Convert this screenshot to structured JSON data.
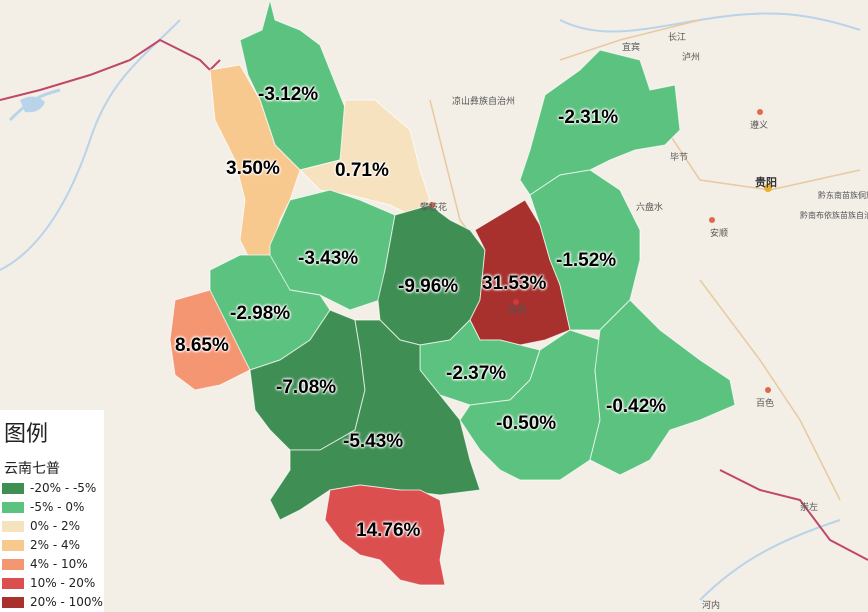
{
  "colors": {
    "bin1": "#3f8f55",
    "bin2": "#5cc27f",
    "bin3": "#f7e2bf",
    "bin4": "#f7c98f",
    "bin5": "#f59673",
    "bin6": "#dc4f4f",
    "bin7": "#a8302d",
    "boundary": "#c0466a",
    "background": "#f3efe6"
  },
  "regions": [
    {
      "id": "nujiang",
      "label": "-3.12%",
      "value": -3.12,
      "bin": "bin2"
    },
    {
      "id": "diqing",
      "label": "0.71%",
      "value": 0.71,
      "bin": "bin3"
    },
    {
      "id": "dehong-north",
      "label": "3.50%",
      "value": 3.5,
      "bin": "bin4"
    },
    {
      "id": "zhaotong",
      "label": "-2.31%",
      "value": -2.31,
      "bin": "bin2"
    },
    {
      "id": "dali",
      "label": "-3.43%",
      "value": -3.43,
      "bin": "bin2"
    },
    {
      "id": "chuxiong",
      "label": "-9.96%",
      "value": -9.96,
      "bin": "bin1"
    },
    {
      "id": "kunming",
      "label": "31.53%",
      "value": 31.53,
      "bin": "bin7"
    },
    {
      "id": "qujing",
      "label": "-1.52%",
      "value": -1.52,
      "bin": "bin2"
    },
    {
      "id": "baoshan",
      "label": "-2.98%",
      "value": -2.98,
      "bin": "bin2"
    },
    {
      "id": "dehong",
      "label": "8.65%",
      "value": 8.65,
      "bin": "bin5"
    },
    {
      "id": "lincang",
      "label": "-7.08%",
      "value": -7.08,
      "bin": "bin1"
    },
    {
      "id": "yuxi",
      "label": "-2.37%",
      "value": -2.37,
      "bin": "bin2"
    },
    {
      "id": "puer",
      "label": "-5.43%",
      "value": -5.43,
      "bin": "bin1"
    },
    {
      "id": "honghe",
      "label": "-0.50%",
      "value": -0.5,
      "bin": "bin2"
    },
    {
      "id": "wenshan",
      "label": "-0.42%",
      "value": -0.42,
      "bin": "bin2"
    },
    {
      "id": "xishuangbanna",
      "label": "14.76%",
      "value": 14.76,
      "bin": "bin6"
    }
  ],
  "cities": [
    {
      "id": "guiyang",
      "name": "贵阳",
      "major": true
    },
    {
      "id": "kunming-city",
      "name": "昆明",
      "major": false
    },
    {
      "id": "zunyi",
      "name": "遵义",
      "major": false
    },
    {
      "id": "bijie",
      "name": "毕节",
      "major": false
    },
    {
      "id": "liupanshui",
      "name": "六盘水",
      "major": false
    },
    {
      "id": "anshun",
      "name": "安顺",
      "major": false
    },
    {
      "id": "baise",
      "name": "百色",
      "major": false
    },
    {
      "id": "panzhihua",
      "name": "攀枝花",
      "major": false
    },
    {
      "id": "yibin",
      "name": "宜宾",
      "major": false
    },
    {
      "id": "luzhou",
      "name": "泸州",
      "major": false
    },
    {
      "id": "changjiang",
      "name": "长江",
      "major": false
    },
    {
      "id": "chongzuo",
      "name": "崇左",
      "major": false
    },
    {
      "id": "hanoi",
      "name": "河内",
      "major": false
    },
    {
      "id": "liangshan",
      "name": "凉山彝族自治州",
      "major": false
    },
    {
      "id": "qiandongnan",
      "name": "黔东南苗族侗族自治州",
      "major": false
    },
    {
      "id": "qiannan",
      "name": "黔南布依族苗族自治州",
      "major": false
    }
  ],
  "legend": {
    "title": "图例",
    "subtitle": "云南七普",
    "items": [
      {
        "label": "-20% - -5%",
        "bin": "bin1"
      },
      {
        "label": "-5% - 0%",
        "bin": "bin2"
      },
      {
        "label": "0% - 2%",
        "bin": "bin3"
      },
      {
        "label": "2% - 4%",
        "bin": "bin4"
      },
      {
        "label": "4% - 10%",
        "bin": "bin5"
      },
      {
        "label": "10% - 20%",
        "bin": "bin6"
      },
      {
        "label": "20% - 100%",
        "bin": "bin7"
      }
    ]
  }
}
